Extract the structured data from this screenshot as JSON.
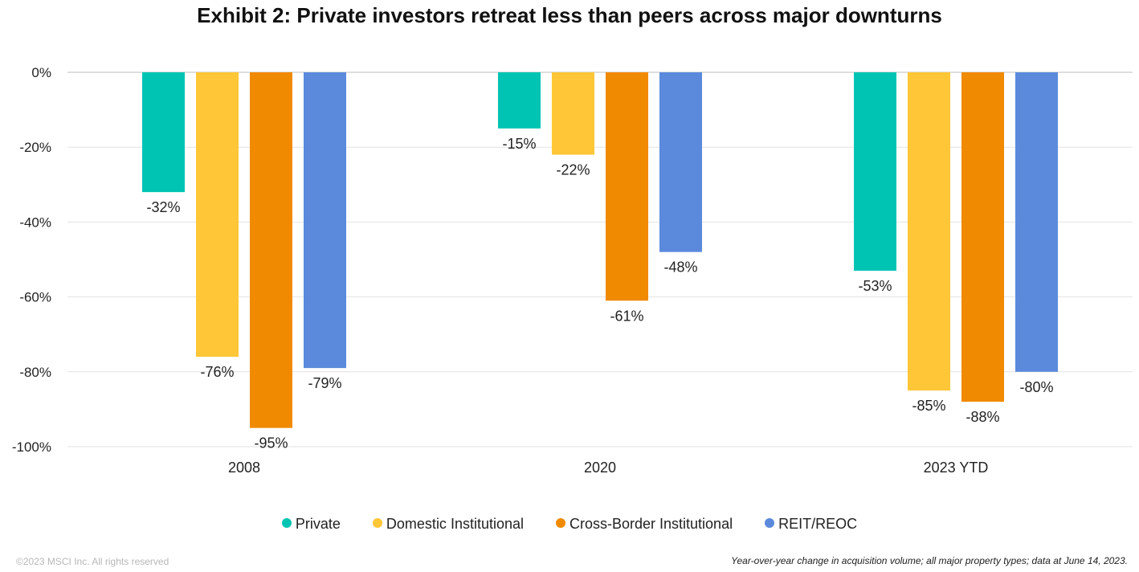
{
  "header": {
    "title": "Exhibit 2: Private investors retreat less than peers across major downturns"
  },
  "footer": {
    "copyright": "©2023 MSCI Inc. All rights reserved",
    "note": "Year-over-year change in acquisition volume; all major property types; data at June 14, 2023."
  },
  "chart_data": {
    "type": "bar",
    "title": "Exhibit 2: Private investors retreat less than peers across major downturns",
    "xlabel": "",
    "ylabel": "",
    "ylim": [
      -100,
      0
    ],
    "yticks": [
      0,
      -20,
      -40,
      -60,
      -80,
      -100
    ],
    "ytick_labels": [
      "0%",
      "-20%",
      "-40%",
      "-60%",
      "-80%",
      "-100%"
    ],
    "grid": true,
    "legend_position": "bottom",
    "categories": [
      "2008",
      "2020",
      "2023 YTD"
    ],
    "series": [
      {
        "name": "Private",
        "color": "#00c4b3",
        "values": [
          -32,
          -15,
          -53
        ],
        "labels": [
          "-32%",
          "-15%",
          "-53%"
        ]
      },
      {
        "name": "Domestic Institutional",
        "color": "#ffc637",
        "values": [
          -76,
          -22,
          -85
        ],
        "labels": [
          "-76%",
          "-22%",
          "-85%"
        ]
      },
      {
        "name": "Cross-Border Institutional",
        "color": "#f08a00",
        "values": [
          -95,
          -61,
          -88
        ],
        "labels": [
          "-95%",
          "-61%",
          "-88%"
        ]
      },
      {
        "name": "REIT/REOC",
        "color": "#5b8adc",
        "values": [
          -79,
          -48,
          -80
        ],
        "labels": [
          "-79%",
          "-48%",
          "-80%"
        ]
      }
    ]
  }
}
